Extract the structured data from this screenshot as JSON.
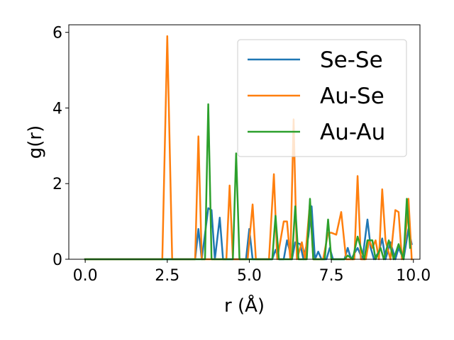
{
  "chart_data": {
    "type": "line",
    "title": "",
    "xlabel": "r (Å)",
    "ylabel": "g(r)",
    "xlim": [
      -0.5,
      10.2
    ],
    "ylim": [
      0,
      6.2
    ],
    "xticks": [
      0.0,
      2.5,
      5.0,
      7.5,
      10.0
    ],
    "xtick_labels": [
      "0.0",
      "2.5",
      "5.0",
      "7.5",
      "10.0"
    ],
    "yticks": [
      0,
      2,
      4,
      6
    ],
    "ytick_labels": [
      "0",
      "2",
      "4",
      "6"
    ],
    "grid": false,
    "legend_position": "top-right",
    "series": [
      {
        "name": "Se-Se",
        "color": "#1f77b4",
        "x": [
          0.0,
          2.2,
          3.35,
          3.45,
          3.55,
          3.75,
          3.85,
          3.95,
          4.1,
          4.2,
          4.9,
          5.0,
          5.1,
          5.7,
          5.8,
          5.9,
          6.05,
          6.15,
          6.3,
          6.4,
          6.55,
          6.65,
          6.8,
          6.9,
          7.0,
          7.1,
          7.2,
          7.35,
          7.45,
          7.55,
          7.9,
          8.0,
          8.1,
          8.3,
          8.45,
          8.6,
          8.7,
          8.8,
          8.95,
          9.05,
          9.15,
          9.3,
          9.45,
          9.55,
          9.7,
          9.85,
          9.95
        ],
        "y": [
          0.0,
          0.0,
          0.0,
          0.8,
          0.0,
          1.35,
          1.3,
          0.0,
          1.1,
          0.0,
          0.0,
          0.8,
          0.0,
          0.0,
          0.25,
          0.0,
          0.0,
          0.5,
          0.0,
          0.45,
          0.4,
          0.0,
          0.6,
          1.4,
          0.0,
          0.2,
          0.0,
          0.0,
          0.3,
          0.0,
          0.0,
          0.3,
          0.0,
          0.3,
          0.0,
          1.05,
          0.3,
          0.0,
          0.2,
          0.55,
          0.0,
          0.45,
          0.0,
          0.3,
          0.0,
          0.8,
          0.4
        ]
      },
      {
        "name": "Au-Se",
        "color": "#ff7f0e",
        "x": [
          0.0,
          2.2,
          2.35,
          2.5,
          2.65,
          3.35,
          3.45,
          3.55,
          3.65,
          4.3,
          4.4,
          4.5,
          4.6,
          4.95,
          5.1,
          5.2,
          5.6,
          5.75,
          5.85,
          6.05,
          6.15,
          6.25,
          6.35,
          6.45,
          6.6,
          6.7,
          6.85,
          6.95,
          7.05,
          7.25,
          7.4,
          7.5,
          7.65,
          7.8,
          7.95,
          8.05,
          8.2,
          8.3,
          8.4,
          8.55,
          8.65,
          8.75,
          8.85,
          8.95,
          9.05,
          9.15,
          9.3,
          9.45,
          9.55,
          9.65,
          9.75,
          9.85,
          9.95
        ],
        "y": [
          0.0,
          0.0,
          0.0,
          5.9,
          0.0,
          0.0,
          3.25,
          0.0,
          0.0,
          0.0,
          1.95,
          0.0,
          0.0,
          0.0,
          1.45,
          0.0,
          0.0,
          2.25,
          0.0,
          1.0,
          1.0,
          0.0,
          3.7,
          0.0,
          0.45,
          0.0,
          1.5,
          0.0,
          0.0,
          0.0,
          0.7,
          0.7,
          0.65,
          1.25,
          0.0,
          0.0,
          0.0,
          2.2,
          0.0,
          0.0,
          0.5,
          0.3,
          0.5,
          0.0,
          1.85,
          0.5,
          0.0,
          1.3,
          1.25,
          0.0,
          0.5,
          1.6,
          0.0
        ]
      },
      {
        "name": "Au-Au",
        "color": "#2ca02c",
        "x": [
          0.0,
          3.55,
          3.65,
          3.75,
          3.85,
          4.5,
          4.6,
          4.7,
          5.7,
          5.8,
          5.9,
          6.3,
          6.4,
          6.5,
          6.75,
          6.85,
          6.95,
          7.3,
          7.4,
          7.5,
          7.9,
          8.0,
          8.15,
          8.3,
          8.5,
          8.6,
          8.75,
          8.85,
          9.0,
          9.1,
          9.25,
          9.4,
          9.55,
          9.7,
          9.8,
          9.9
        ],
        "y": [
          0.0,
          0.0,
          0.0,
          4.1,
          0.0,
          0.0,
          2.8,
          0.0,
          0.0,
          1.15,
          0.0,
          0.0,
          1.4,
          0.0,
          0.0,
          1.6,
          0.0,
          0.0,
          1.05,
          0.0,
          0.0,
          0.1,
          0.0,
          0.6,
          0.0,
          0.5,
          0.5,
          0.0,
          0.3,
          0.0,
          0.5,
          0.0,
          0.4,
          0.0,
          1.6,
          0.3
        ]
      }
    ]
  }
}
